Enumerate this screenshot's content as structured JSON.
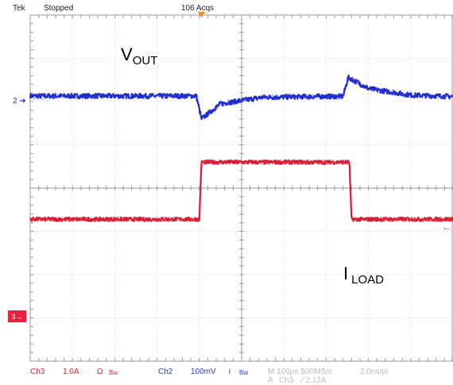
{
  "header": {
    "brand": "Tek",
    "state": "Stopped",
    "acqs": "106 Acqs"
  },
  "annotations": {
    "vout_main": "V",
    "vout_sub": "OUT",
    "iload_main": "I",
    "iload_sub": "LOAD"
  },
  "markers": {
    "ch2": "2",
    "ch3": "3"
  },
  "footer": {
    "ch3_label": "Ch3",
    "ch3_scale": "1.0A",
    "ch3_impedance": "Ω",
    "ch3_bw": "Bw",
    "ch2_label": "Ch2",
    "ch2_scale": "100mV",
    "ch2_coupling": "≀",
    "ch2_bw": "Bw",
    "timebase": "M 100μs 500MS/s",
    "sample": "2.0ns/pt",
    "trigger_prefix": "A",
    "trigger_ch": "Ch3",
    "trigger_level": "∕ 2.12A"
  },
  "colors": {
    "grid": "#9a9a9a",
    "ch2": "#2330d8",
    "ch3": "#e8213c",
    "trigger": "#f08a24"
  },
  "chart_data": {
    "type": "line",
    "title": "",
    "xlabel": "",
    "ylabel": "",
    "x_divisions": 10,
    "y_divisions": 8,
    "x_unit": "div",
    "series": [
      {
        "name": "VOUT",
        "channel": "Ch2",
        "scale": "100mV/div",
        "x": [
          0,
          3.93,
          4.05,
          4.5,
          5.5,
          7.0,
          7.4,
          7.52,
          8.0,
          9.0,
          10.0
        ],
        "y": [
          6.13,
          6.13,
          5.6,
          5.95,
          6.1,
          6.12,
          6.12,
          6.56,
          6.3,
          6.15,
          6.12
        ]
      },
      {
        "name": "ILOAD",
        "channel": "Ch3",
        "scale": "1.0A/div",
        "x": [
          0,
          4.0,
          4.05,
          7.55,
          7.6,
          10.0
        ],
        "y": [
          3.28,
          3.28,
          4.6,
          4.6,
          3.28,
          3.28
        ]
      }
    ]
  }
}
